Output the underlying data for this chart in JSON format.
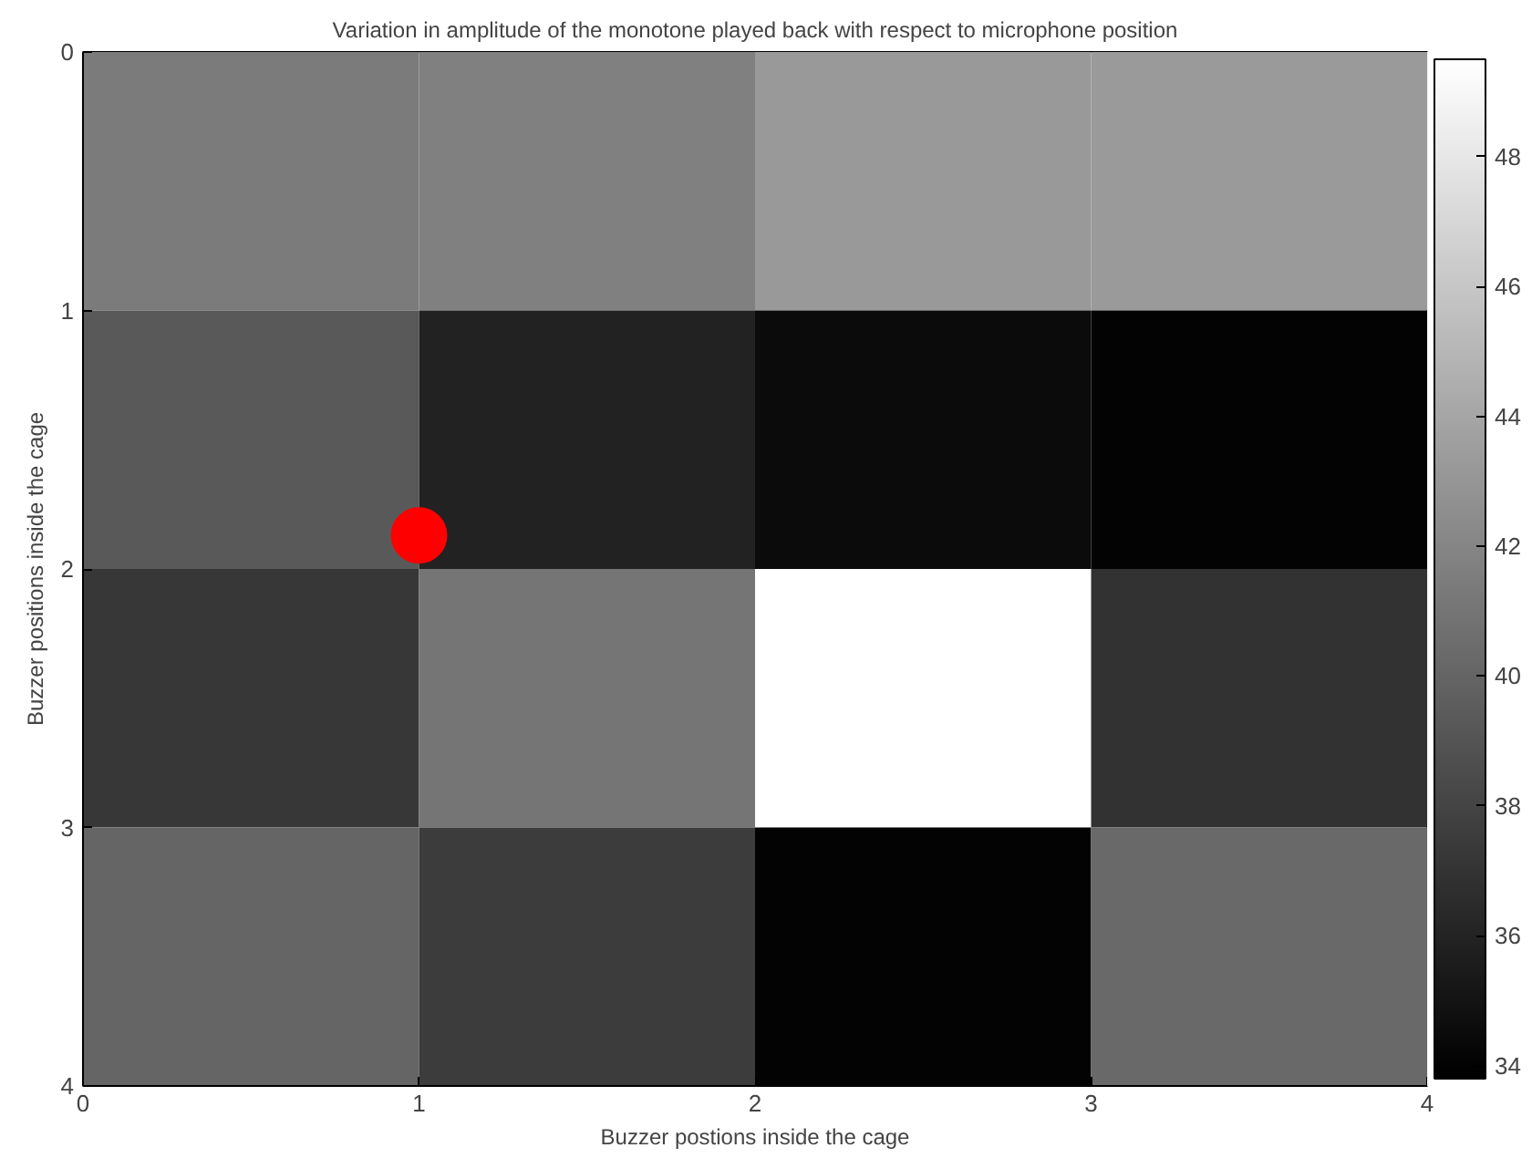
{
  "chart_data": {
    "type": "heatmap",
    "title": "Variation in amplitude of the monotone played back with respect to microphone position",
    "xlabel": "Buzzer postions inside the cage",
    "ylabel": "Buzzer positions inside the cage",
    "cells": [
      [
        41.4,
        41.7,
        43.2,
        43.3
      ],
      [
        39.3,
        35.9,
        34.5,
        34.0
      ],
      [
        37.2,
        41.0,
        49.5,
        36.9
      ],
      [
        40.0,
        37.5,
        34.0,
        40.3
      ]
    ],
    "xlim": [
      0,
      4
    ],
    "xticks": [
      0,
      1,
      2,
      3,
      4
    ],
    "ylim": [
      4,
      0
    ],
    "yticks": [
      0,
      1,
      2,
      3,
      4
    ],
    "clim": [
      33.8,
      49.5
    ],
    "cticks": [
      34,
      36,
      38,
      40,
      42,
      44,
      46,
      48
    ],
    "series": [
      {
        "type": "scatter",
        "x": [
          1
        ],
        "values": [
          1.87
        ],
        "color": "#ff0000",
        "marker": "circle"
      }
    ],
    "grid": false
  }
}
